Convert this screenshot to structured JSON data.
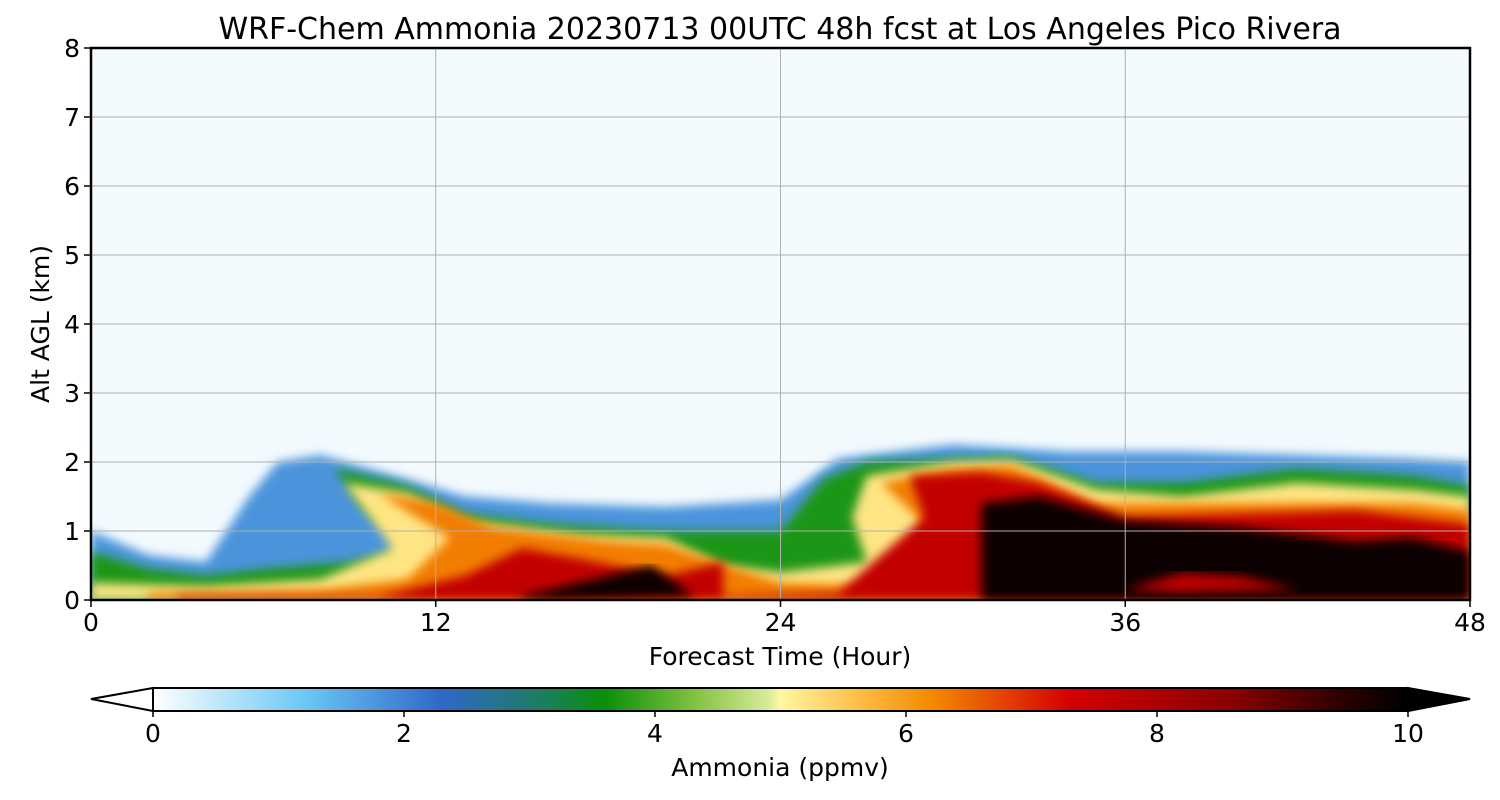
{
  "chart_data": {
    "type": "heatmap",
    "title": "WRF-Chem Ammonia  20230713 00UTC 48h fcst at Los Angeles Pico Rivera",
    "xlabel": "Forecast Time (Hour)",
    "ylabel": "Alt AGL (km)",
    "xlim": [
      0,
      48
    ],
    "ylim": [
      0,
      8
    ],
    "xticks": [
      "0",
      "12",
      "24",
      "36",
      "48"
    ],
    "yticks": [
      "0",
      "1",
      "2",
      "3",
      "4",
      "5",
      "6",
      "7",
      "8"
    ],
    "grid": true,
    "colorbar": {
      "label": "Ammonia  (ppmv)",
      "min": 0,
      "max": 10,
      "ticks": [
        "0",
        "2",
        "4",
        "6",
        "8",
        "10"
      ],
      "extend": "both",
      "stops": [
        {
          "v": 0,
          "color": "#ffffff"
        },
        {
          "v": 1.2,
          "color": "#6cc8f5"
        },
        {
          "v": 2.3,
          "color": "#2f68c8"
        },
        {
          "v": 3.0,
          "color": "#1f7a6f"
        },
        {
          "v": 3.6,
          "color": "#0a8f0a"
        },
        {
          "v": 4.3,
          "color": "#7fc040"
        },
        {
          "v": 4.9,
          "color": "#d8eb98"
        },
        {
          "v": 5.0,
          "color": "#fff7a0"
        },
        {
          "v": 5.6,
          "color": "#ffc04a"
        },
        {
          "v": 6.2,
          "color": "#f58a00"
        },
        {
          "v": 7.3,
          "color": "#d40000"
        },
        {
          "v": 8.6,
          "color": "#8a0000"
        },
        {
          "v": 9.5,
          "color": "#2a0000"
        },
        {
          "v": 10,
          "color": "#000000"
        }
      ]
    },
    "layers": [
      {
        "name": "background",
        "value": 0.1,
        "points": [
          [
            0,
            0
          ],
          [
            48,
            0
          ],
          [
            48,
            8
          ],
          [
            0,
            8
          ]
        ]
      },
      {
        "name": "blue-plume",
        "value": 1.8,
        "points": [
          [
            0,
            1.0
          ],
          [
            2,
            0.65
          ],
          [
            4,
            0.55
          ],
          [
            5.5,
            1.5
          ],
          [
            6.5,
            2.0
          ],
          [
            8,
            2.1
          ],
          [
            11,
            1.75
          ],
          [
            13,
            1.5
          ],
          [
            16,
            1.4
          ],
          [
            20,
            1.35
          ],
          [
            24,
            1.45
          ],
          [
            26,
            2.05
          ],
          [
            30,
            2.25
          ],
          [
            34,
            2.15
          ],
          [
            38,
            2.15
          ],
          [
            42,
            2.1
          ],
          [
            46,
            2.05
          ],
          [
            48,
            2.0
          ],
          [
            48,
            0
          ],
          [
            0,
            0
          ]
        ]
      },
      {
        "name": "green-band",
        "value": 3.7,
        "points": [
          [
            0,
            0.7
          ],
          [
            2,
            0.45
          ],
          [
            4,
            0.35
          ],
          [
            6,
            0.45
          ],
          [
            9,
            0.55
          ],
          [
            11,
            0.75
          ],
          [
            9.5,
            1.3
          ],
          [
            8.5,
            1.9
          ],
          [
            11,
            1.65
          ],
          [
            13,
            1.25
          ],
          [
            16,
            1.1
          ],
          [
            20,
            1.0
          ],
          [
            24,
            1.0
          ],
          [
            25.5,
            1.75
          ],
          [
            27,
            2.0
          ],
          [
            32,
            2.08
          ],
          [
            35,
            1.7
          ],
          [
            38,
            1.7
          ],
          [
            42,
            1.9
          ],
          [
            46,
            1.8
          ],
          [
            48,
            1.65
          ],
          [
            48,
            0
          ],
          [
            0,
            0
          ]
        ]
      },
      {
        "name": "yellow-band",
        "value": 5.2,
        "points": [
          [
            0,
            0.25
          ],
          [
            4,
            0.2
          ],
          [
            8,
            0.3
          ],
          [
            10.5,
            0.75
          ],
          [
            8.8,
            1.7
          ],
          [
            11,
            1.55
          ],
          [
            13,
            1.15
          ],
          [
            17,
            0.95
          ],
          [
            20,
            0.9
          ],
          [
            22,
            0.5
          ],
          [
            24,
            0.4
          ],
          [
            27,
            0.55
          ],
          [
            26.5,
            1.2
          ],
          [
            27,
            1.8
          ],
          [
            30,
            2.0
          ],
          [
            32,
            2.03
          ],
          [
            35,
            1.6
          ],
          [
            38,
            1.5
          ],
          [
            42,
            1.7
          ],
          [
            46,
            1.6
          ],
          [
            48,
            1.5
          ],
          [
            48,
            0
          ],
          [
            0,
            0
          ]
        ]
      },
      {
        "name": "orange-core",
        "value": 6.3,
        "points": [
          [
            2,
            0.1
          ],
          [
            8,
            0.15
          ],
          [
            11,
            0.3
          ],
          [
            12.5,
            0.9
          ],
          [
            10,
            1.55
          ],
          [
            12,
            1.4
          ],
          [
            14,
            1.05
          ],
          [
            18,
            0.85
          ],
          [
            20,
            0.8
          ],
          [
            22.5,
            0.45
          ],
          [
            24,
            0.25
          ],
          [
            28,
            0.2
          ],
          [
            29,
            1.1
          ],
          [
            27.5,
            1.7
          ],
          [
            30,
            1.9
          ],
          [
            32,
            1.95
          ],
          [
            35,
            1.4
          ],
          [
            40,
            1.4
          ],
          [
            46,
            1.4
          ],
          [
            48,
            1.3
          ],
          [
            48,
            0
          ],
          [
            2,
            0
          ]
        ]
      },
      {
        "name": "red-core",
        "value": 7.6,
        "points": [
          [
            3,
            0.05
          ],
          [
            10,
            0.05
          ],
          [
            13,
            0.35
          ],
          [
            15,
            0.75
          ],
          [
            17,
            0.6
          ],
          [
            20,
            0.35
          ],
          [
            22,
            0.55
          ],
          [
            22,
            0.05
          ],
          [
            26,
            0.1
          ],
          [
            29,
            1.2
          ],
          [
            28.5,
            1.8
          ],
          [
            31,
            1.85
          ],
          [
            33,
            1.7
          ],
          [
            36,
            1.2
          ],
          [
            40,
            1.25
          ],
          [
            44,
            1.3
          ],
          [
            48,
            1.1
          ],
          [
            48,
            0
          ],
          [
            3,
            0
          ]
        ]
      },
      {
        "name": "black-core",
        "value": 9.9,
        "points": [
          [
            15,
            0.05
          ],
          [
            18,
            0.35
          ],
          [
            19.5,
            0.5
          ],
          [
            20.5,
            0.2
          ],
          [
            21,
            0.05
          ],
          [
            15,
            0
          ]
        ]
      },
      {
        "name": "black-core-2",
        "value": 9.9,
        "points": [
          [
            31,
            0.05
          ],
          [
            31,
            1.4
          ],
          [
            33,
            1.5
          ],
          [
            36,
            1.15
          ],
          [
            40,
            1.05
          ],
          [
            44,
            0.85
          ],
          [
            46,
            0.9
          ],
          [
            48,
            0.7
          ],
          [
            48,
            0
          ],
          [
            31,
            0
          ]
        ]
      },
      {
        "name": "red-patch",
        "value": 7.8,
        "points": [
          [
            36,
            0.15
          ],
          [
            38,
            0.4
          ],
          [
            40,
            0.35
          ],
          [
            42,
            0.15
          ],
          [
            38,
            0.1
          ]
        ]
      }
    ]
  }
}
